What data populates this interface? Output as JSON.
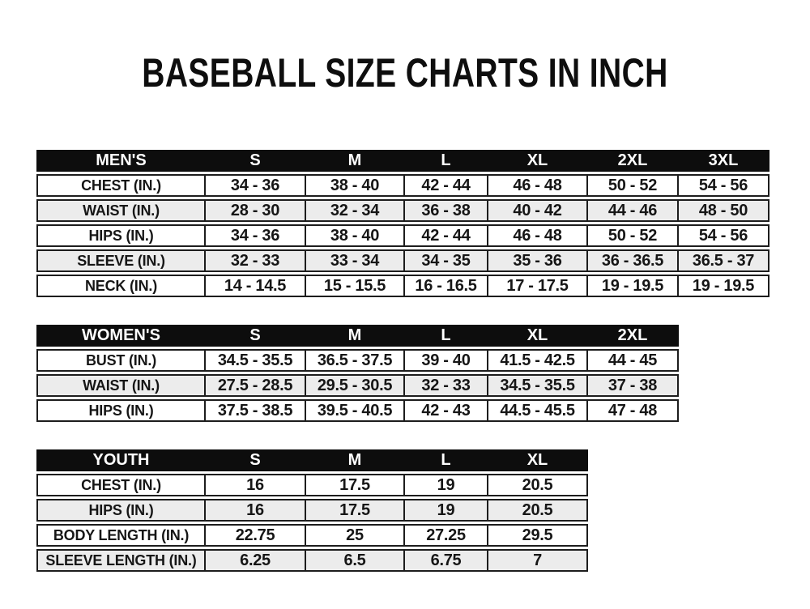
{
  "page": {
    "title": "BASEBALL SIZE CHARTS IN INCH",
    "unit": "IN."
  },
  "colors": {
    "page_bg": "#ffffff",
    "header_bg": "#0d0d0d",
    "header_text": "#ffffff",
    "row_bg": "#ffffff",
    "row_alt_bg": "#ececec",
    "border": "#1d1d1d",
    "text": "#141414"
  },
  "chart_data": [
    {
      "type": "table",
      "name": "mens",
      "title": "MEN'S",
      "columns": [
        "MEN'S",
        "S",
        "M",
        "L",
        "XL",
        "2XL",
        "3XL"
      ],
      "rows": [
        [
          "CHEST (IN.)",
          "34 - 36",
          "38 - 40",
          "42 - 44",
          "46 - 48",
          "50 - 52",
          "54 - 56"
        ],
        [
          "WAIST (IN.)",
          "28 - 30",
          "32 - 34",
          "36 - 38",
          "40 - 42",
          "44 - 46",
          "48 - 50"
        ],
        [
          "HIPS (IN.)",
          "34 - 36",
          "38 - 40",
          "42 - 44",
          "46 - 48",
          "50 - 52",
          "54 - 56"
        ],
        [
          "SLEEVE (IN.)",
          "32 - 33",
          "33 - 34",
          "34 - 35",
          "35 - 36",
          "36 - 36.5",
          "36.5 - 37"
        ],
        [
          "NECK (IN.)",
          "14 - 14.5",
          "15 - 15.5",
          "16 - 16.5",
          "17 - 17.5",
          "19 - 19.5",
          "19 - 19.5"
        ]
      ]
    },
    {
      "type": "table",
      "name": "womens",
      "title": "WOMEN'S",
      "columns": [
        "WOMEN'S",
        "S",
        "M",
        "L",
        "XL",
        "2XL"
      ],
      "rows": [
        [
          "BUST (IN.)",
          "34.5 - 35.5",
          "36.5 - 37.5",
          "39 - 40",
          "41.5 - 42.5",
          "44 - 45"
        ],
        [
          "WAIST (IN.)",
          "27.5 - 28.5",
          "29.5 - 30.5",
          "32 - 33",
          "34.5 - 35.5",
          "37 - 38"
        ],
        [
          "HIPS (IN.)",
          "37.5 - 38.5",
          "39.5 - 40.5",
          "42 - 43",
          "44.5 - 45.5",
          "47 - 48"
        ]
      ]
    },
    {
      "type": "table",
      "name": "youth",
      "title": "YOUTH",
      "columns": [
        "YOUTH",
        "S",
        "M",
        "L",
        "XL"
      ],
      "rows": [
        [
          "CHEST (IN.)",
          "16",
          "17.5",
          "19",
          "20.5"
        ],
        [
          "HIPS (IN.)",
          "16",
          "17.5",
          "19",
          "20.5"
        ],
        [
          "BODY LENGTH (IN.)",
          "22.75",
          "25",
          "27.25",
          "29.5"
        ],
        [
          "SLEEVE LENGTH (IN.)",
          "6.25",
          "6.5",
          "6.75",
          "7"
        ]
      ]
    }
  ]
}
